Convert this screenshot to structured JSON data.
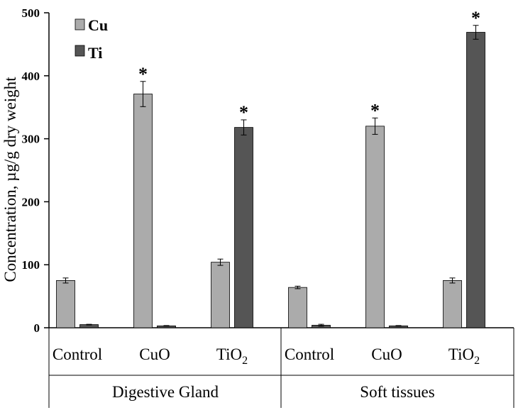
{
  "chart_data": {
    "type": "bar",
    "title": "",
    "xlabel": "",
    "ylabel": "Concentration, µg/g dry weight",
    "ylim": [
      0,
      500
    ],
    "yticks": [
      "0",
      "100",
      "200",
      "300",
      "400",
      "500"
    ],
    "grid": false,
    "legend_position": "top-left",
    "groups": [
      {
        "name": "Digestive Gland",
        "categories": [
          {
            "label": "Control",
            "sub": ""
          },
          {
            "label": "CuO",
            "sub": ""
          },
          {
            "label": "TiO",
            "sub": "2"
          }
        ]
      },
      {
        "name": "Soft tissues",
        "categories": [
          {
            "label": "Control",
            "sub": ""
          },
          {
            "label": "CuO",
            "sub": ""
          },
          {
            "label": "TiO",
            "sub": "2"
          }
        ]
      }
    ],
    "series": [
      {
        "name": "Cu",
        "color": "#ababab",
        "values": [
          75,
          371,
          104,
          64,
          320,
          75
        ],
        "errors": [
          4,
          20,
          5,
          2,
          13,
          4
        ],
        "significant": [
          false,
          true,
          false,
          false,
          true,
          false
        ]
      },
      {
        "name": "Ti",
        "color": "#555555",
        "values": [
          5,
          3,
          318,
          4,
          3,
          469
        ],
        "errors": [
          0.5,
          0.5,
          12,
          1.5,
          0.5,
          11
        ],
        "significant": [
          false,
          false,
          true,
          false,
          false,
          true
        ]
      }
    ],
    "significance_marker": "*"
  }
}
